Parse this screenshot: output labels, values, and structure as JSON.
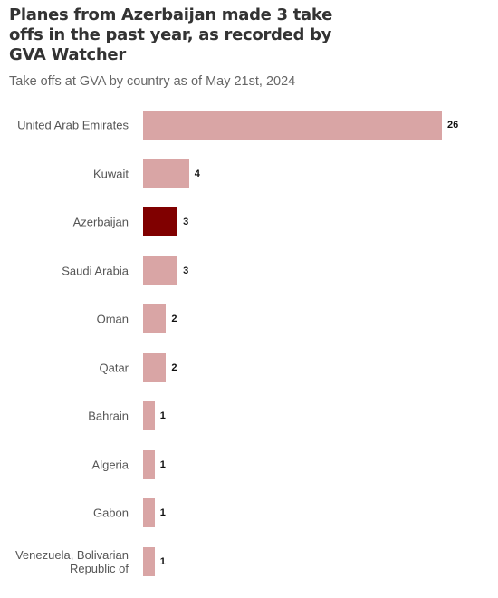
{
  "chart_data": {
    "type": "bar",
    "orientation": "horizontal",
    "title": "Planes from Azerbaijan made 3 take offs in the past year, as recorded by GVA Watcher",
    "subtitle": "Take offs at GVA by country as of May 21st, 2024",
    "categories": [
      "United Arab Emirates",
      "Kuwait",
      "Azerbaijan",
      "Saudi Arabia",
      "Oman",
      "Qatar",
      "Bahrain",
      "Algeria",
      "Gabon",
      "Venezuela, Bolivarian Republic of"
    ],
    "values": [
      26,
      4,
      3,
      3,
      2,
      2,
      1,
      1,
      1,
      1
    ],
    "colors": [
      "#d9a5a5",
      "#d9a5a5",
      "#800000",
      "#d9a5a5",
      "#d9a5a5",
      "#d9a5a5",
      "#d9a5a5",
      "#d9a5a5",
      "#d9a5a5",
      "#d9a5a5"
    ]
  }
}
